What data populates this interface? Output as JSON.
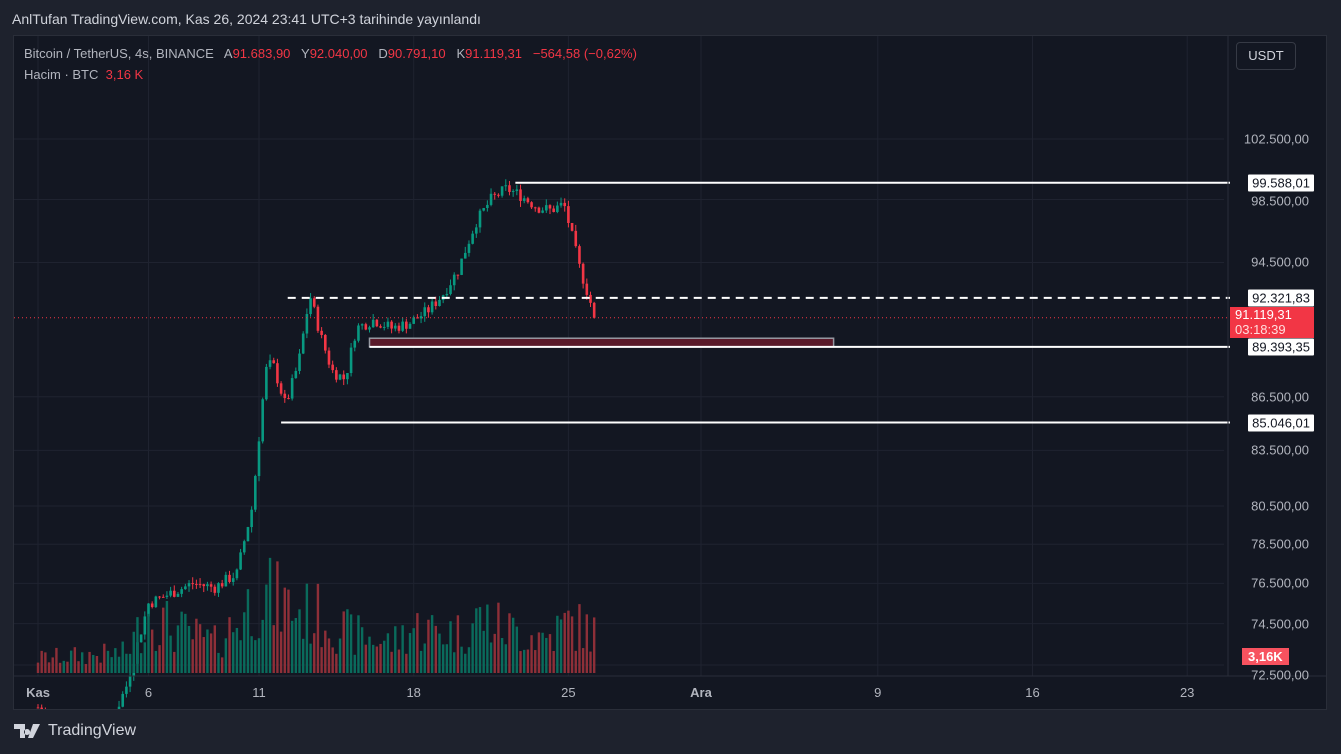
{
  "published": "AnlTufan TradingView.com, Kas 26, 2024 23:41 UTC+3 tarihinde yayınlandı",
  "legend": {
    "symbol": "Bitcoin / TetherUS, 4s, BINANCE",
    "o_label": "A",
    "o": "91.683,90",
    "h_label": "Y",
    "h": "92.040,00",
    "l_label": "D",
    "l": "90.791,10",
    "c_label": "K",
    "c": "91.119,31",
    "change": "−564,58 (−0,62%)",
    "volume_label": "Hacim · BTC",
    "volume": "3,16 K"
  },
  "currency_button": "USDT",
  "y_axis": [
    "102.500,00",
    "98.500,00",
    "94.500,00",
    "86.500,00",
    "83.500,00",
    "80.500,00",
    "78.500,00",
    "76.500,00",
    "74.500,00",
    "72.500,00"
  ],
  "y_values": [
    102500,
    98500,
    94500,
    86500,
    83500,
    80500,
    78500,
    76500,
    74500,
    72500
  ],
  "levels": [
    {
      "label": "99.588,01",
      "price": 99588.01,
      "from_day": 22.6,
      "style": "solid"
    },
    {
      "label": "92.321,83",
      "price": 92321.83,
      "from_day": 12.3,
      "style": "dashed"
    },
    {
      "label": "89.393,35",
      "price": 89393.35,
      "from_day": 16.0,
      "style": "solid"
    },
    {
      "label": "85.046,01",
      "price": 85046.01,
      "from_day": 12.0,
      "style": "solid"
    }
  ],
  "zone": {
    "from_day": 16.0,
    "to_day": 37.0,
    "low": 89393.35,
    "high": 89900
  },
  "current": {
    "price_label": "91.119,31",
    "countdown": "03:18:39",
    "price": 91119.31
  },
  "volume_tag": "3,16K",
  "x_axis": [
    {
      "label": "Kas",
      "day": 1
    },
    {
      "label": "6",
      "day": 6
    },
    {
      "label": "11",
      "day": 11
    },
    {
      "label": "18",
      "day": 18
    },
    {
      "label": "25",
      "day": 25
    },
    {
      "label": "Ara",
      "day": 31
    },
    {
      "label": "9",
      "day": 39
    },
    {
      "label": "16",
      "day": 46
    },
    {
      "label": "23",
      "day": 53
    }
  ],
  "brand": "TradingView",
  "chart_data": {
    "type": "candlestick",
    "interval": "4h",
    "price_path": [
      [
        1,
        70500
      ],
      [
        4,
        69000
      ],
      [
        5,
        71500
      ],
      [
        6,
        75500
      ],
      [
        7,
        76000
      ],
      [
        8,
        76500
      ],
      [
        9,
        76300
      ],
      [
        10,
        77000
      ],
      [
        10.7,
        80500
      ],
      [
        11.3,
        88000
      ],
      [
        11.6,
        88500
      ],
      [
        12.2,
        86000
      ],
      [
        12.8,
        88500
      ],
      [
        13.3,
        92500
      ],
      [
        13.8,
        90000
      ],
      [
        14.3,
        88000
      ],
      [
        14.9,
        87500
      ],
      [
        15.4,
        90500
      ],
      [
        16.2,
        91000
      ],
      [
        17,
        90500
      ],
      [
        17.8,
        90800
      ],
      [
        18.6,
        91500
      ],
      [
        19.3,
        92500
      ],
      [
        20,
        94000
      ],
      [
        20.8,
        97000
      ],
      [
        21.5,
        98500
      ],
      [
        22.2,
        99200
      ],
      [
        22.8,
        98800
      ],
      [
        23.6,
        98000
      ],
      [
        24.2,
        97800
      ],
      [
        24.8,
        98200
      ],
      [
        25.1,
        96500
      ],
      [
        25.5,
        94200
      ],
      [
        25.9,
        92500
      ],
      [
        26.2,
        91119
      ]
    ],
    "volume_path": [
      [
        1,
        15
      ],
      [
        5,
        20
      ],
      [
        6,
        60
      ],
      [
        7,
        45
      ],
      [
        9,
        30
      ],
      [
        10,
        50
      ],
      [
        11,
        80
      ],
      [
        12,
        70
      ],
      [
        13,
        60
      ],
      [
        14,
        55
      ],
      [
        15,
        40
      ],
      [
        17,
        30
      ],
      [
        18,
        45
      ],
      [
        20,
        40
      ],
      [
        21,
        55
      ],
      [
        22,
        45
      ],
      [
        24,
        35
      ],
      [
        25,
        50
      ],
      [
        26.2,
        40
      ]
    ],
    "colors": {
      "up": "#089981",
      "down": "#f23645"
    }
  }
}
